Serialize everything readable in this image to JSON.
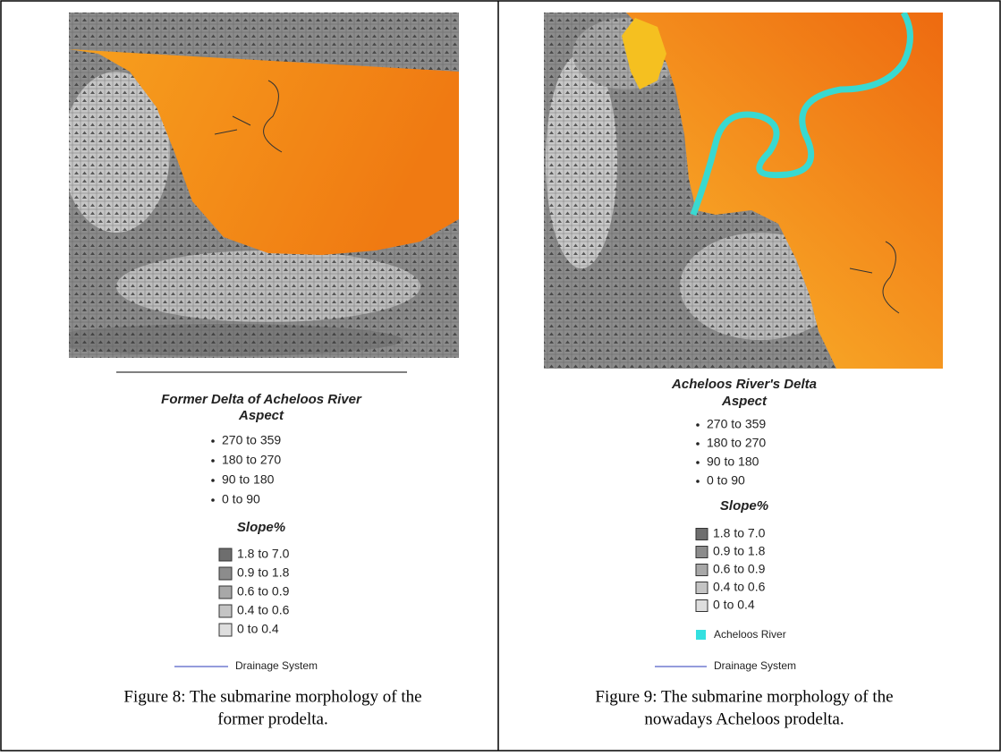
{
  "figures": [
    {
      "legend": {
        "title": "Former Delta of Acheloos River",
        "aspect_title": "Aspect",
        "aspect": [
          "270 to 359",
          "180 to 270",
          "90 to 180",
          "0 to 90"
        ],
        "slope_title": "Slope%",
        "slope": [
          "1.8 to 7.0",
          "0.9 to 1.8",
          "0.6 to 0.9",
          "0.4 to 0.6",
          "0 to 0.4"
        ],
        "drainage": "Drainage System"
      },
      "caption": [
        "Figure 8: The submarine morphology of the",
        "former prodelta."
      ]
    },
    {
      "legend": {
        "title": "Acheloos River's Delta",
        "aspect_title": "Aspect",
        "aspect": [
          "270 to 359",
          "180 to 270",
          "90 to 180",
          "0 to 90"
        ],
        "slope_title": "Slope%",
        "slope": [
          "1.8 to 7.0",
          "0.9 to 1.8",
          "0.6 to 0.9",
          "0.4 to 0.6",
          "0 to 0.4"
        ],
        "river": "Acheloos River",
        "drainage": "Drainage System"
      },
      "caption": [
        "Figure 9: The submarine morphology of the",
        "nowadays Acheloos prodelta."
      ]
    }
  ]
}
